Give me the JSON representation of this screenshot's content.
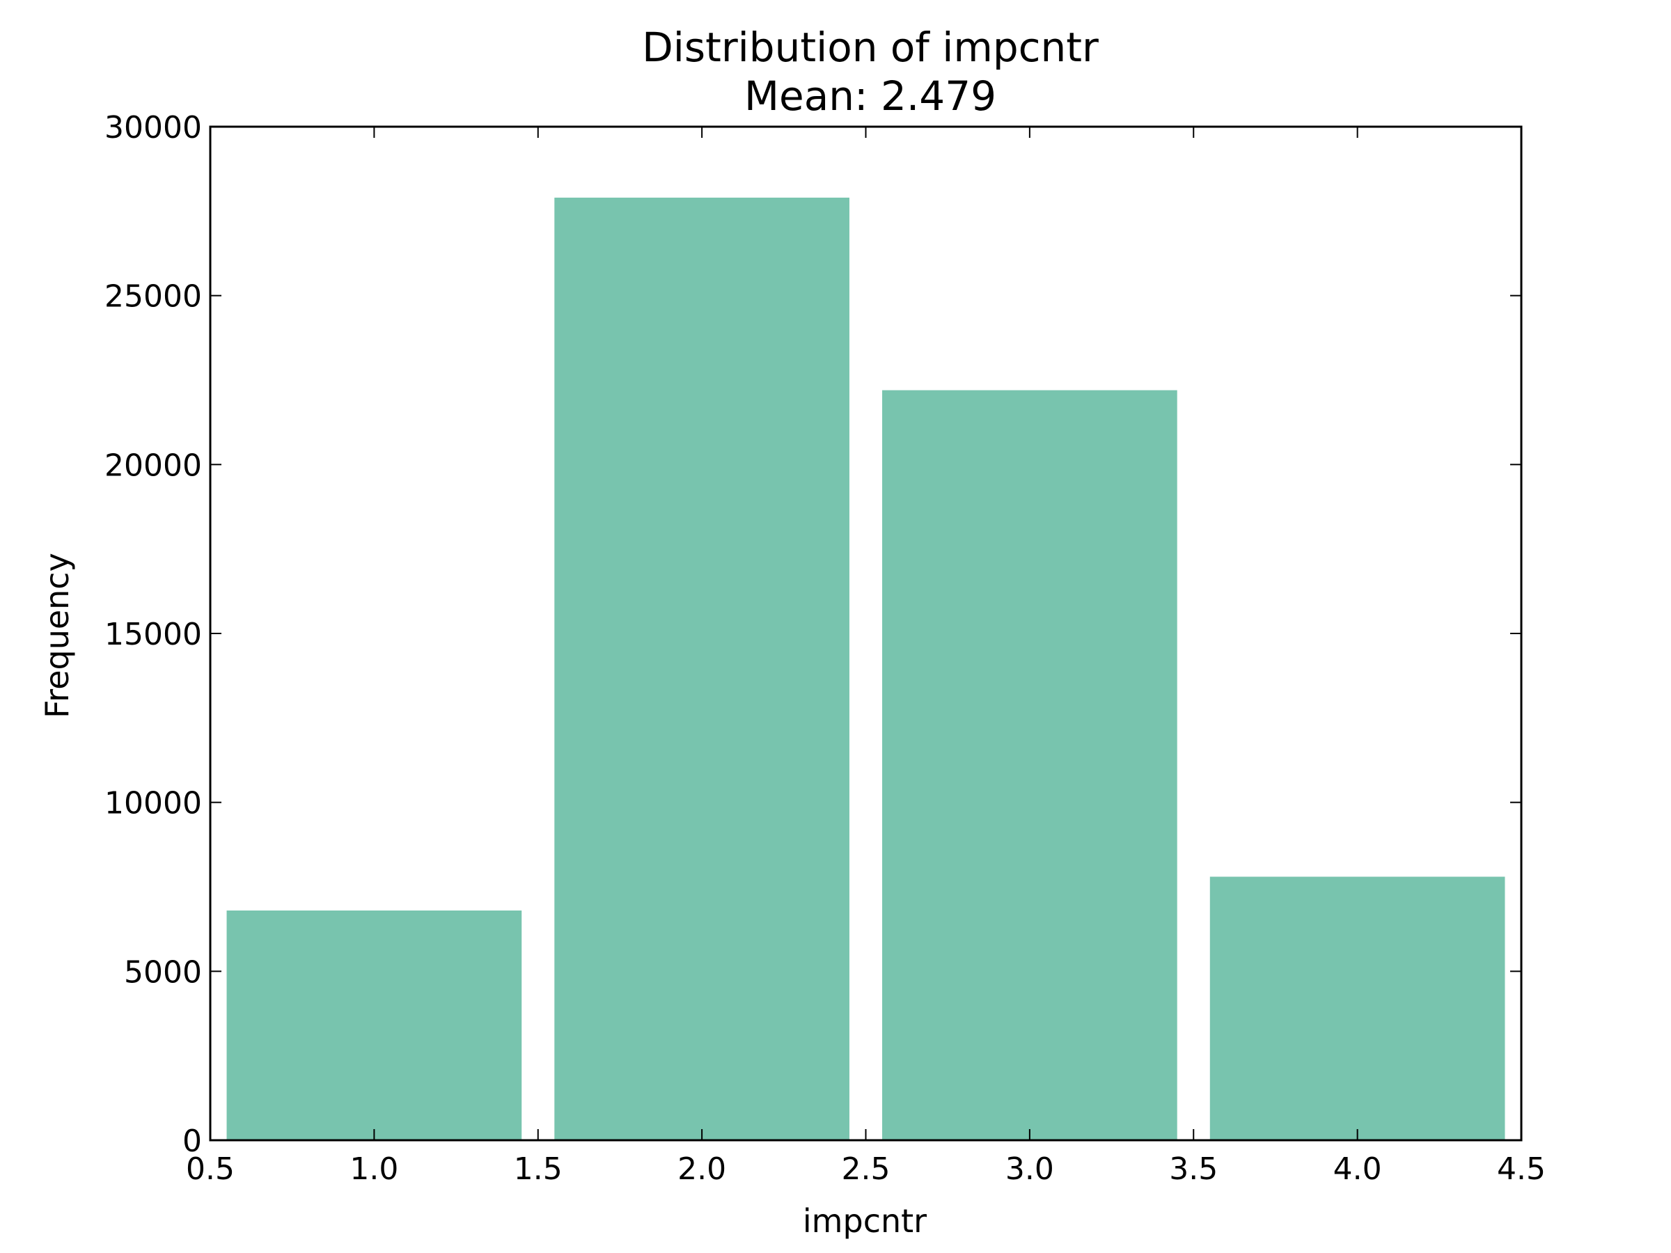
{
  "chart_data": {
    "type": "bar",
    "title": "Distribution of impcntr",
    "subtitle": "Mean: 2.479",
    "xlabel": "impcntr",
    "ylabel": "Frequency",
    "xlim": [
      0.5,
      4.5
    ],
    "ylim": [
      0,
      30000
    ],
    "xticks": [
      0.5,
      1.0,
      1.5,
      2.0,
      2.5,
      3.0,
      3.5,
      4.0,
      4.5
    ],
    "xtick_labels": [
      "0.5",
      "1.0",
      "1.5",
      "2.0",
      "2.5",
      "3.0",
      "3.5",
      "4.0",
      "4.5"
    ],
    "yticks": [
      0,
      5000,
      10000,
      15000,
      20000,
      25000,
      30000
    ],
    "ytick_labels": [
      "0",
      "5000",
      "10000",
      "15000",
      "20000",
      "25000",
      "30000"
    ],
    "bars": [
      {
        "x0": 0.55,
        "x1": 1.45,
        "value": 6800
      },
      {
        "x0": 1.55,
        "x1": 2.45,
        "value": 27900
      },
      {
        "x0": 2.55,
        "x1": 3.45,
        "value": 22200
      },
      {
        "x0": 3.55,
        "x1": 4.45,
        "value": 7800
      }
    ],
    "bar_color": "#78c4ae",
    "grid": false,
    "legend": "none"
  }
}
